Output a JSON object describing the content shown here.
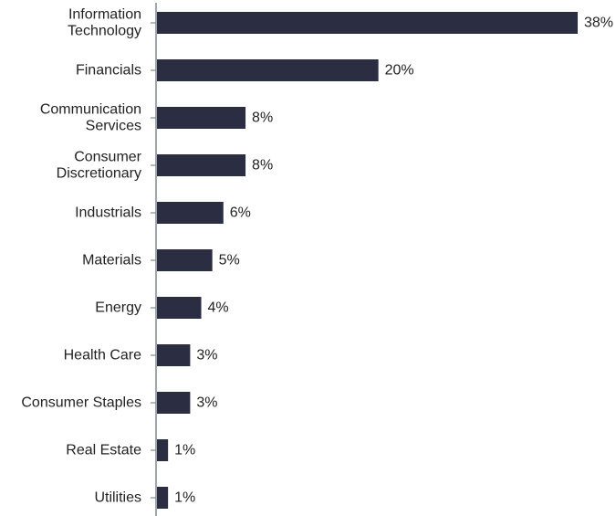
{
  "chart_data": {
    "type": "bar",
    "orientation": "horizontal",
    "categories": [
      [
        "Information",
        "Technology"
      ],
      [
        "Financials"
      ],
      [
        "Communication",
        "Services"
      ],
      [
        "Consumer",
        "Discretionary"
      ],
      [
        "Industrials"
      ],
      [
        "Materials"
      ],
      [
        "Energy"
      ],
      [
        "Health Care"
      ],
      [
        "Consumer Staples"
      ],
      [
        "Real Estate"
      ],
      [
        "Utilities"
      ]
    ],
    "values": [
      38,
      20,
      8,
      8,
      6,
      5,
      4,
      3,
      3,
      1,
      1
    ],
    "value_labels": [
      "38%",
      "20%",
      "8%",
      "8%",
      "6%",
      "5%",
      "4%",
      "3%",
      "3%",
      "1%",
      "1%"
    ],
    "title": "",
    "xlabel": "",
    "ylabel": "",
    "xlim": [
      0,
      38
    ],
    "grid": false,
    "legend": "none",
    "colors": {
      "bar": "#2b2d42",
      "axis": "#7d8a8e",
      "text": "#222222"
    }
  }
}
